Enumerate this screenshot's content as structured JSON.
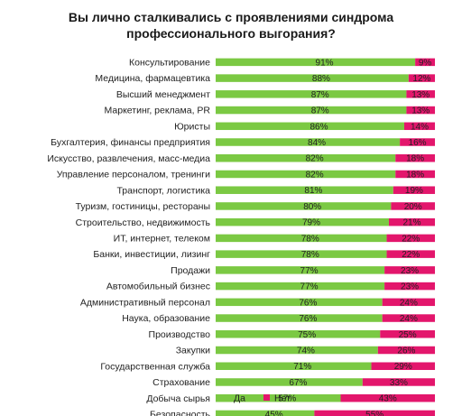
{
  "chart_data": {
    "type": "bar",
    "stacked": true,
    "orientation": "horizontal",
    "title": "Вы лично сталкивались с проявлениями синдрома профессионального выгорания?",
    "categories": [
      "Консультирование",
      "Медицина, фармацевтика",
      "Высший менеджмент",
      "Маркетинг, реклама, PR",
      "Юристы",
      "Бухгалтерия, финансы предприятия",
      "Искусство, развлечения, масс-медиа",
      "Управление персоналом, тренинги",
      "Транспорт, логистика",
      "Туризм, гостиницы, рестораны",
      "Строительство, недвижимость",
      "ИТ, интернет, телеком",
      "Банки, инвестиции, лизинг",
      "Продажи",
      "Автомобильный бизнес",
      "Административный персонал",
      "Наука, образование",
      "Производство",
      "Закупки",
      "Государственная служба",
      "Страхование",
      "Добыча сырья",
      "Безопасность"
    ],
    "series": [
      {
        "name": "Да",
        "color": "#7bc943",
        "values": [
          91,
          88,
          87,
          87,
          86,
          84,
          82,
          82,
          81,
          80,
          79,
          78,
          78,
          77,
          77,
          76,
          76,
          75,
          74,
          71,
          67,
          57,
          45
        ],
        "labels": [
          "91%",
          "88%",
          "87%",
          "87%",
          "86%",
          "84%",
          "82%",
          "82%",
          "81%",
          "80%",
          "79%",
          "78%",
          "78%",
          "77%",
          "77%",
          "76%",
          "76%",
          "75%",
          "74%",
          "71%",
          "67%",
          "57%",
          "45%"
        ]
      },
      {
        "name": "Нет",
        "color": "#e3166c",
        "values": [
          9,
          12,
          13,
          13,
          14,
          16,
          18,
          18,
          19,
          20,
          21,
          22,
          22,
          23,
          23,
          24,
          24,
          25,
          26,
          29,
          33,
          43,
          55
        ],
        "labels": [
          "9%",
          "12%",
          "13%",
          "13%",
          "14%",
          "16%",
          "18%",
          "18%",
          "19%",
          "20%",
          "21%",
          "22%",
          "22%",
          "23%",
          "23%",
          "24%",
          "24%",
          "25%",
          "26%",
          "29%",
          "33%",
          "43%",
          "55%"
        ]
      }
    ],
    "xlim": [
      0,
      100
    ],
    "grid": false,
    "legend": "bottom"
  }
}
